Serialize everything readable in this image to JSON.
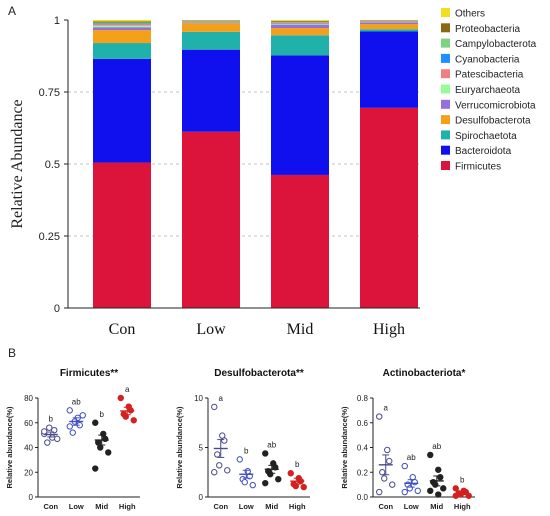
{
  "panel_labels": {
    "a": "A",
    "b": "B"
  },
  "chart_data": [
    {
      "type": "bar",
      "stacked": true,
      "ylabel": "Relative Abundance",
      "ylim": [
        0,
        1
      ],
      "yticks": [
        "0",
        "0.25",
        "0.5",
        "0.75",
        "1"
      ],
      "categories": [
        "Con",
        "Low",
        "Mid",
        "High"
      ],
      "grid": "dashed horizontal",
      "legend_position": "right",
      "series": [
        {
          "name": "Firmicutes",
          "color": "#dc143c",
          "values": [
            0.505,
            0.612,
            0.462,
            0.695
          ]
        },
        {
          "name": "Bacteroidota",
          "color": "#1010ee",
          "values": [
            0.36,
            0.285,
            0.415,
            0.265
          ]
        },
        {
          "name": "Spirochaetota",
          "color": "#20b2aa",
          "values": [
            0.055,
            0.062,
            0.07,
            0.008
          ]
        },
        {
          "name": "Desulfobacterota",
          "color": "#f5a01a",
          "values": [
            0.045,
            0.03,
            0.025,
            0.018
          ]
        },
        {
          "name": "Verrucomicrobiota",
          "color": "#9370db",
          "values": [
            0.01,
            0.003,
            0.012,
            0.006
          ]
        },
        {
          "name": "Euryarchaeota",
          "color": "#98fb98",
          "values": [
            0.005,
            0.001,
            0.002,
            0.001
          ]
        },
        {
          "name": "Patescibacteria",
          "color": "#f08080",
          "values": [
            0.005,
            0.001,
            0.004,
            0.002
          ]
        },
        {
          "name": "Cyanobacteria",
          "color": "#1e90ff",
          "values": [
            0.003,
            0.001,
            0.002,
            0.001
          ]
        },
        {
          "name": "Campylobacterota",
          "color": "#7ed37e",
          "values": [
            0.003,
            0.001,
            0.002,
            0.001
          ]
        },
        {
          "name": "Proteobacteria",
          "color": "#8b6914",
          "values": [
            0.004,
            0.002,
            0.003,
            0.002
          ]
        },
        {
          "name": "Others",
          "color": "#f0e020",
          "values": [
            0.005,
            0.002,
            0.003,
            0.001
          ]
        }
      ]
    },
    {
      "type": "scatter",
      "title": "Firmicutes**",
      "ylabel": "Relative abundance(%)",
      "ylim": [
        0,
        80
      ],
      "yticks": [
        "0",
        "20",
        "40",
        "60",
        "80"
      ],
      "categories": [
        "Con",
        "Low",
        "Mid",
        "High"
      ],
      "colors": [
        "#4a4a8a",
        "#3f4fc0",
        "#222222",
        "#d42020"
      ],
      "filled": [
        false,
        false,
        true,
        true
      ],
      "points": [
        [
          51,
          48,
          54,
          44,
          56,
          47,
          53
        ],
        [
          70,
          64,
          58,
          52,
          61,
          66,
          57
        ],
        [
          60,
          51,
          47,
          44,
          40,
          36,
          23
        ],
        [
          80,
          73,
          70,
          67,
          65,
          62
        ]
      ],
      "means": [
        50.5,
        61,
        46,
        69.5
      ],
      "sems": [
        2,
        3,
        4,
        3
      ],
      "letters": [
        "b",
        "ab",
        "b",
        "a"
      ]
    },
    {
      "type": "scatter",
      "title": "Desulfobacterota**",
      "ylabel": "Relative abundance(%)",
      "ylim": [
        0,
        10
      ],
      "yticks": [
        "0",
        "5",
        "10"
      ],
      "categories": [
        "Con",
        "Low",
        "Mid",
        "High"
      ],
      "colors": [
        "#4a4a8a",
        "#3f4fc0",
        "#222222",
        "#d42020"
      ],
      "filled": [
        false,
        false,
        true,
        true
      ],
      "points": [
        [
          9.1,
          6.2,
          5.7,
          4.3,
          3.2,
          2.7,
          2.5
        ],
        [
          3.8,
          2.6,
          2.1,
          1.8,
          1.5,
          1.2
        ],
        [
          4.4,
          3.4,
          3.0,
          2.6,
          2.3,
          1.8,
          1.4
        ],
        [
          2.4,
          1.9,
          1.6,
          1.3,
          1.1,
          1.0
        ]
      ],
      "means": [
        4.9,
        2.3,
        2.8,
        1.6
      ],
      "sems": [
        0.9,
        0.4,
        0.4,
        0.3
      ],
      "letters": [
        "a",
        "b",
        "ab",
        "b"
      ]
    },
    {
      "type": "scatter",
      "title": "Actinobacteriota*",
      "ylabel": "Relative abundance(%)",
      "ylim": [
        0,
        0.8
      ],
      "yticks": [
        "0.0",
        "0.2",
        "0.4",
        "0.6",
        "0.8"
      ],
      "categories": [
        "Con",
        "Low",
        "Mid",
        "High"
      ],
      "colors": [
        "#4a4a8a",
        "#3f4fc0",
        "#222222",
        "#d42020"
      ],
      "filled": [
        false,
        false,
        true,
        true
      ],
      "points": [
        [
          0.65,
          0.38,
          0.29,
          0.2,
          0.15,
          0.1,
          0.04
        ],
        [
          0.25,
          0.16,
          0.12,
          0.1,
          0.07,
          0.05,
          0.04
        ],
        [
          0.34,
          0.22,
          0.16,
          0.12,
          0.1,
          0.07,
          0.05,
          0.02
        ],
        [
          0.07,
          0.05,
          0.04,
          0.03,
          0.02,
          0.01,
          0.01
        ]
      ],
      "means": [
        0.26,
        0.11,
        0.13,
        0.03
      ],
      "sems": [
        0.08,
        0.03,
        0.04,
        0.01
      ],
      "letters": [
        "a",
        "ab",
        "ab",
        "b"
      ]
    }
  ]
}
